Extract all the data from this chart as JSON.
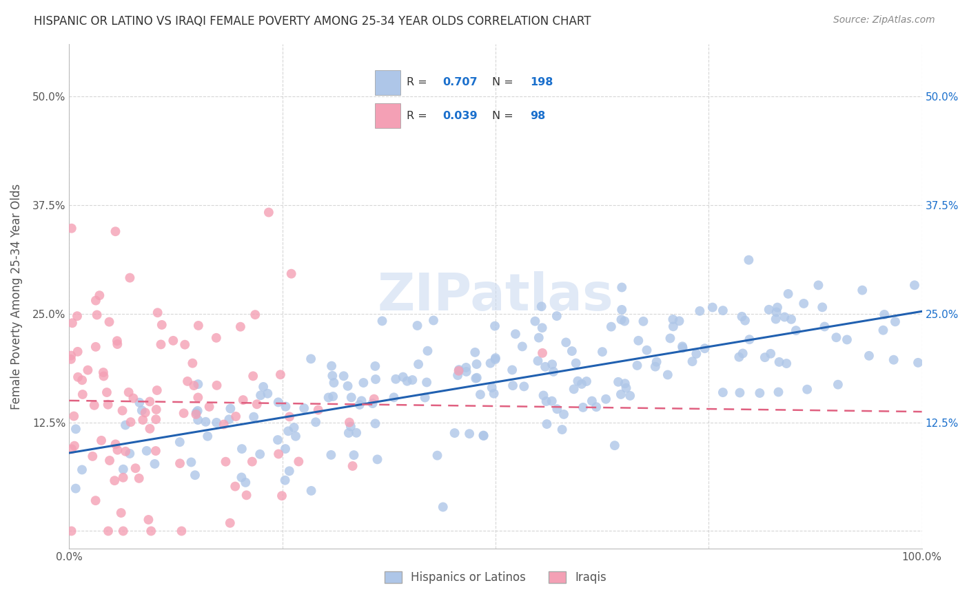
{
  "title": "HISPANIC OR LATINO VS IRAQI FEMALE POVERTY AMONG 25-34 YEAR OLDS CORRELATION CHART",
  "source": "Source: ZipAtlas.com",
  "ylabel": "Female Poverty Among 25-34 Year Olds",
  "xlim": [
    0.0,
    1.0
  ],
  "ylim": [
    -0.02,
    0.56
  ],
  "yticks": [
    0.0,
    0.125,
    0.25,
    0.375,
    0.5
  ],
  "left_yticklabels": [
    "",
    "12.5%",
    "25.0%",
    "37.5%",
    "50.0%"
  ],
  "right_yticklabels": [
    "",
    "12.5%",
    "25.0%",
    "37.5%",
    "50.0%"
  ],
  "xticks": [
    0.0,
    0.25,
    0.5,
    0.75,
    1.0
  ],
  "xticklabels": [
    "0.0%",
    "",
    "",
    "",
    "100.0%"
  ],
  "blue_R": 0.707,
  "blue_N": 198,
  "pink_R": 0.039,
  "pink_N": 98,
  "blue_color": "#aec6e8",
  "pink_color": "#f4a0b5",
  "blue_line_color": "#2060b0",
  "pink_line_color": "#e06080",
  "legend_box_color": "#eef2fa",
  "watermark_color": "#c8d8f0",
  "background_color": "#ffffff",
  "grid_color": "#cccccc",
  "title_color": "#333333",
  "title_fontsize": 12,
  "axis_label_color": "#555555",
  "legend_text_color_label": "#333333",
  "legend_text_color_value": "#1a6fcc",
  "right_tick_color": "#1a6fcc",
  "seed_blue": 42,
  "seed_pink": 7
}
